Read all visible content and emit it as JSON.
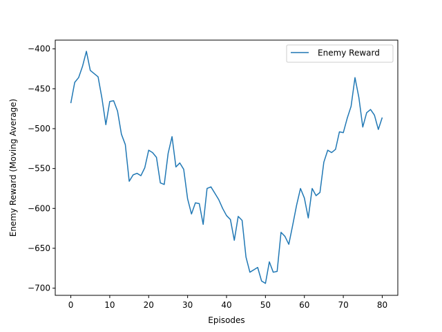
{
  "colors": {
    "series": "#1f77b4",
    "axis": "#000000",
    "background": "#ffffff"
  },
  "chart_data": {
    "type": "line",
    "title": "",
    "xlabel": "Episodes",
    "ylabel": "Enemy Reward (Moving Average)",
    "xlim": [
      -4,
      84
    ],
    "ylim": [
      -709,
      -389
    ],
    "xticks": [
      0,
      10,
      20,
      30,
      40,
      50,
      60,
      70,
      80
    ],
    "yticks": [
      -700,
      -650,
      -600,
      -550,
      -500,
      -450,
      -400
    ],
    "grid": false,
    "legend": {
      "position": "top-right",
      "entries": [
        "Enemy Reward"
      ]
    },
    "series": [
      {
        "name": "Enemy Reward",
        "x": [
          0,
          1,
          2,
          3,
          4,
          5,
          6,
          7,
          8,
          9,
          10,
          11,
          12,
          13,
          14,
          15,
          16,
          17,
          18,
          19,
          20,
          21,
          22,
          23,
          24,
          25,
          26,
          27,
          28,
          29,
          30,
          31,
          32,
          33,
          34,
          35,
          36,
          37,
          38,
          39,
          40,
          41,
          42,
          43,
          44,
          45,
          46,
          47,
          48,
          49,
          50,
          51,
          52,
          53,
          54,
          55,
          56,
          57,
          58,
          59,
          60,
          61,
          62,
          63,
          64,
          65,
          66,
          67,
          68,
          69,
          70,
          71,
          72,
          73,
          74,
          75,
          76,
          77,
          78,
          79,
          80
        ],
        "y": [
          -468,
          -442,
          -436,
          -422,
          -403,
          -427,
          -431,
          -435,
          -462,
          -495,
          -466,
          -465,
          -478,
          -507,
          -520,
          -566,
          -558,
          -556,
          -559,
          -549,
          -527,
          -530,
          -536,
          -568,
          -570,
          -531,
          -510,
          -548,
          -543,
          -551,
          -588,
          -607,
          -593,
          -594,
          -620,
          -575,
          -573,
          -581,
          -589,
          -600,
          -609,
          -614,
          -640,
          -610,
          -615,
          -661,
          -680,
          -677,
          -674,
          -691,
          -694,
          -667,
          -680,
          -679,
          -630,
          -635,
          -645,
          -621,
          -596,
          -575,
          -587,
          -612,
          -575,
          -584,
          -580,
          -542,
          -527,
          -530,
          -526,
          -504,
          -505,
          -487,
          -472,
          -436,
          -461,
          -498,
          -480,
          -476,
          -483,
          -501,
          -486
        ]
      }
    ]
  }
}
